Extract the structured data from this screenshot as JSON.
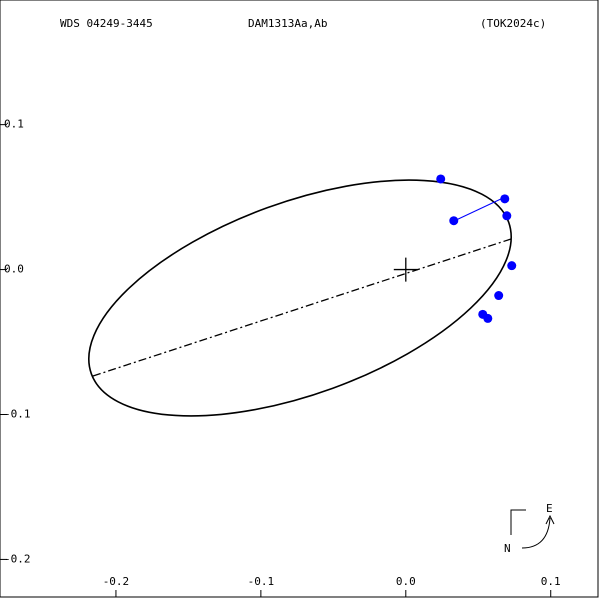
{
  "chart_data": {
    "type": "scatter",
    "header": [
      "WDS 04249-3445",
      "DAM1313Aa,Ab",
      "(TOK2024c)"
    ],
    "compass": {
      "east": "E",
      "north": "N"
    },
    "series": [
      {
        "color": "#0000ff",
        "x": [
          0.0241,
          0.0331,
          0.0683,
          0.0697,
          0.0731,
          0.0641,
          0.0531,
          0.0566
        ],
        "values": [
          0.0625,
          0.0337,
          0.0488,
          0.0371,
          0.0027,
          -0.0179,
          -0.0309,
          -0.0337
        ]
      }
    ],
    "xlim": [
      -0.28,
      0.134
    ],
    "ylim": [
      -0.228,
      0.186
    ],
    "xticks": [
      -0.2,
      -0.1,
      {
        "value": 0,
        "label": "0.0"
      },
      0.1
    ],
    "yticks": [
      0.1,
      {
        "value": 0,
        "label": "0.0"
      },
      -0.1,
      -0.2
    ]
  }
}
